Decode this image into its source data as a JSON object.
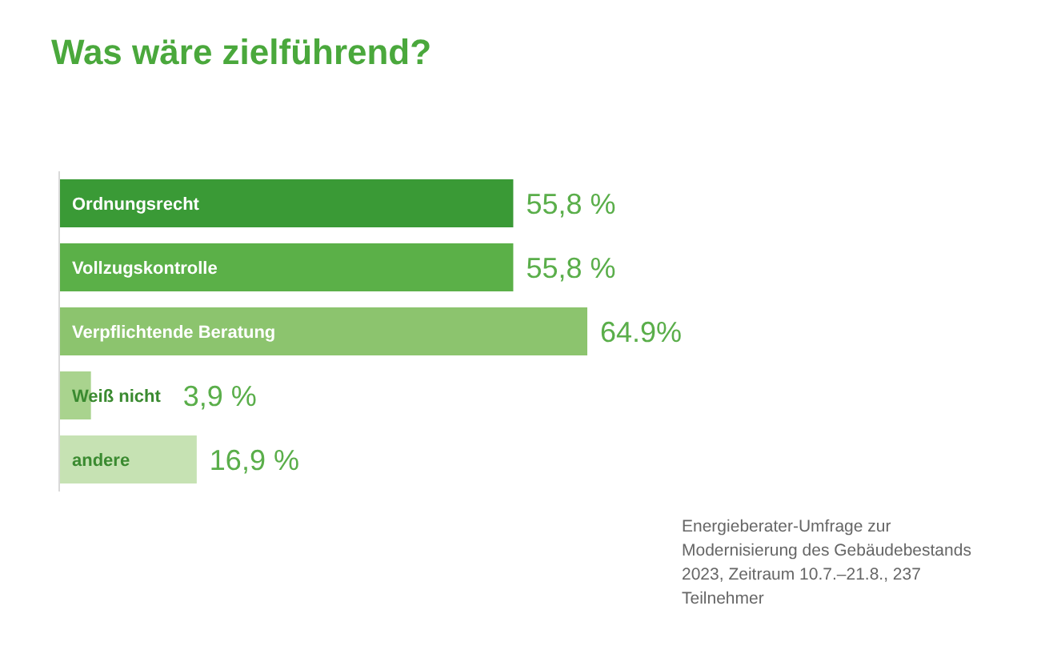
{
  "chart_data": {
    "type": "bar",
    "orientation": "horizontal",
    "title": "Was wäre zielführend?",
    "categories": [
      "Ordnungsrecht",
      "Vollzugskontrolle",
      "Verpflichtende Beratung",
      "Weiß nicht",
      "andere"
    ],
    "values": [
      55.8,
      55.8,
      64.9,
      3.9,
      16.9
    ],
    "colors": [
      "#3a9a36",
      "#5bb048",
      "#8cc46e",
      "#a9d38e",
      "#c6e2b3"
    ],
    "value_labels": [
      "55,8 %",
      "55,8 %",
      "64.9%",
      "3,9 %",
      "16,9 %"
    ],
    "legend": false,
    "grid": false,
    "annotations": [
      "Energieberater-Umfrage zur Modernisierung des Gebäudebestands 2023, Zeitraum 10.7.–21.8., 237 Teilnehmer"
    ]
  }
}
